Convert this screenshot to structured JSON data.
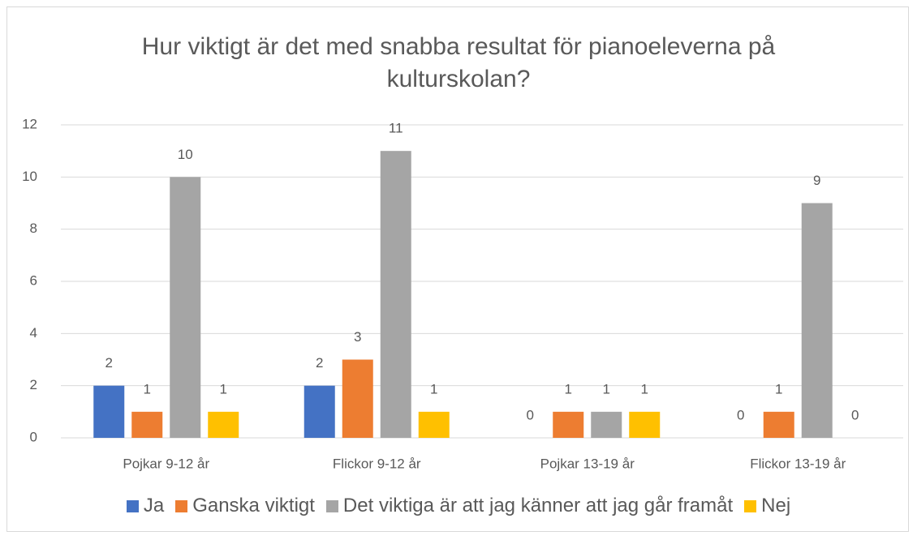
{
  "chart_data": {
    "type": "bar",
    "title": "Hur viktigt är det med snabba resultat för pianoeleverna på kulturskolan?",
    "categories": [
      "Pojkar 9-12 år",
      "Flickor 9-12 år",
      "Pojkar 13-19 år",
      "Flickor 13-19 år"
    ],
    "series": [
      {
        "name": "Ja",
        "color": "#4472c4",
        "values": [
          2,
          2,
          0,
          0
        ]
      },
      {
        "name": "Ganska viktigt",
        "color": "#ed7d31",
        "values": [
          1,
          3,
          1,
          1
        ]
      },
      {
        "name": "Det viktiga är att jag känner att jag går framåt",
        "color": "#a5a5a5",
        "values": [
          10,
          11,
          1,
          9
        ]
      },
      {
        "name": "Nej",
        "color": "#ffc000",
        "values": [
          1,
          1,
          1,
          0
        ]
      }
    ],
    "ylim": [
      0,
      12
    ],
    "yticks": [
      0,
      2,
      4,
      6,
      8,
      10,
      12
    ],
    "grid": true,
    "legend": "bottom"
  }
}
